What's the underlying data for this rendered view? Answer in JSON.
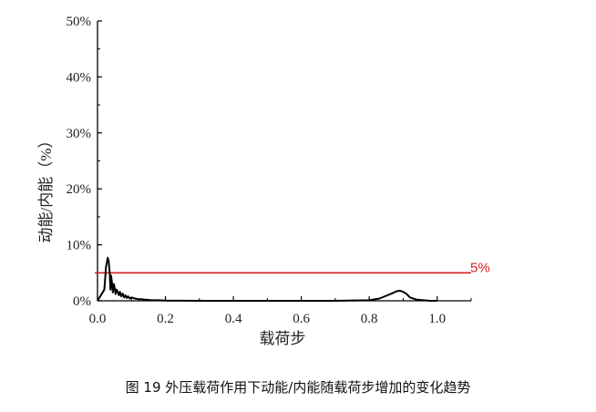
{
  "caption": "图 19 外压载荷作用下动能/内能随载荷步增加的变化趋势",
  "chart_data": {
    "type": "line",
    "title": "",
    "xlabel": "载荷步",
    "ylabel": "动能/内能（%）",
    "xlim": [
      0.0,
      1.1
    ],
    "ylim": [
      0,
      0.5
    ],
    "x_ticks": [
      "0.0",
      "0.2",
      "0.4",
      "0.6",
      "0.8",
      "1.0"
    ],
    "y_ticks": [
      "0%",
      "10%",
      "20%",
      "30%",
      "40%",
      "50%"
    ],
    "grid": false,
    "series": [
      {
        "name": "",
        "color": "#000000",
        "x": [
          0.0,
          0.02,
          0.025,
          0.03,
          0.033,
          0.036,
          0.038,
          0.04,
          0.042,
          0.045,
          0.048,
          0.05,
          0.053,
          0.056,
          0.06,
          0.063,
          0.066,
          0.07,
          0.074,
          0.078,
          0.082,
          0.086,
          0.09,
          0.095,
          0.1,
          0.11,
          0.12,
          0.13,
          0.14,
          0.16,
          0.18,
          0.2,
          0.3,
          0.4,
          0.5,
          0.6,
          0.7,
          0.8,
          0.83,
          0.85,
          0.87,
          0.88,
          0.89,
          0.9,
          0.91,
          0.92,
          0.94,
          0.96,
          0.98,
          1.0
        ],
        "y": [
          0.0,
          0.02,
          0.06,
          0.077,
          0.07,
          0.05,
          0.02,
          0.045,
          0.035,
          0.015,
          0.03,
          0.025,
          0.012,
          0.02,
          0.015,
          0.01,
          0.016,
          0.008,
          0.013,
          0.006,
          0.01,
          0.005,
          0.008,
          0.004,
          0.006,
          0.004,
          0.003,
          0.003,
          0.002,
          0.001,
          0.001,
          0.0005,
          0.0,
          0.0,
          0.0,
          0.0,
          0.0,
          0.001,
          0.004,
          0.009,
          0.014,
          0.017,
          0.018,
          0.016,
          0.012,
          0.006,
          0.002,
          0.001,
          0.0,
          0.0
        ]
      }
    ],
    "threshold": {
      "y": 0.05,
      "label": "5%",
      "color": "#d62020"
    }
  }
}
